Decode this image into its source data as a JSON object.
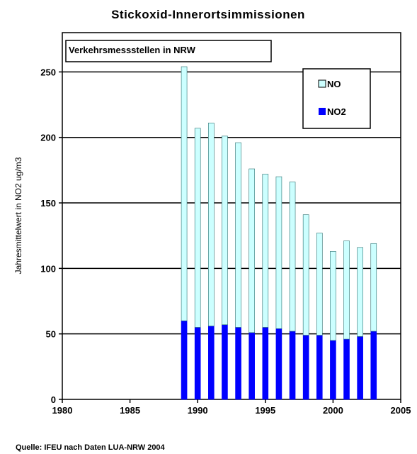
{
  "chart_data": {
    "type": "bar",
    "stacked": true,
    "title": "Stickoxid-Innerortsimmissionen",
    "subtitle": "Verkehrsmessstellen in NRW",
    "ylabel": "Jahresmittelwert in NO2 ug/m3",
    "xlabel": "",
    "xlim": [
      1980,
      2005
    ],
    "ylim": [
      0,
      280
    ],
    "x_ticks": [
      1980,
      1985,
      1990,
      1995,
      2000,
      2005
    ],
    "y_ticks": [
      0,
      50,
      100,
      150,
      200,
      250
    ],
    "grid": "horizontal",
    "legend_position": "top-right",
    "x": [
      1989,
      1990,
      1991,
      1992,
      1993,
      1994,
      1995,
      1996,
      1997,
      1998,
      1999,
      2000,
      2001,
      2002,
      2003
    ],
    "series": [
      {
        "name": "NO2",
        "color": "#0000ff",
        "values": [
          60,
          55,
          56,
          57,
          55,
          51,
          55,
          54,
          52,
          49,
          49,
          45,
          46,
          48,
          52
        ]
      },
      {
        "name": "NO",
        "color": "#ccffff",
        "values": [
          194,
          152,
          155,
          144,
          141,
          125,
          117,
          116,
          114,
          92,
          78,
          68,
          75,
          68,
          67
        ]
      }
    ],
    "legend_order": [
      "NO",
      "NO2"
    ],
    "source": "Quelle:  IFEU nach Daten LUA-NRW 2004"
  }
}
